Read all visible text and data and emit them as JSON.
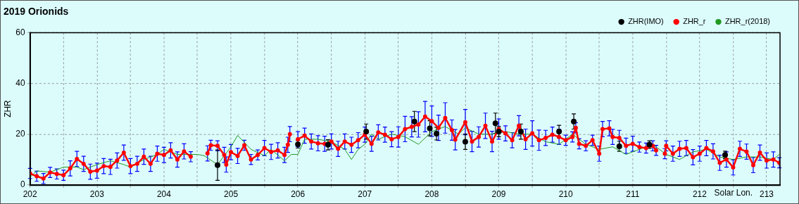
{
  "chart_data": {
    "type": "line",
    "title": "2019 Orionids",
    "xlabel": "Solar Lon.",
    "ylabel": "ZHR",
    "xlim": [
      202,
      213.2
    ],
    "ylim": [
      0,
      60
    ],
    "xticks": [
      202,
      {
        "value": 202.5,
        "label": null
      },
      203,
      {
        "value": 203.5,
        "label": null
      },
      204,
      {
        "value": 204.5,
        "label": null
      },
      205,
      {
        "value": 205.5,
        "label": null
      },
      206,
      {
        "value": 206.5,
        "label": null
      },
      207,
      {
        "value": 207.5,
        "label": null
      },
      208,
      {
        "value": 208.5,
        "label": null
      },
      209,
      {
        "value": 209.5,
        "label": null
      },
      210,
      {
        "value": 210.5,
        "label": null
      },
      211,
      {
        "value": 211.5,
        "label": null
      },
      212,
      {
        "value": 212.5,
        "label": null
      },
      213
    ],
    "yticks": [
      0,
      20,
      40,
      60
    ],
    "grid": true,
    "legend": "top right",
    "series": [
      {
        "name": "ZHR_r",
        "type": "line",
        "color": "#ff0000",
        "marker": "circle",
        "x": [
          202.0,
          202.1,
          202.2,
          202.3,
          202.4,
          202.5,
          202.6,
          202.7,
          202.8,
          202.9,
          203.0,
          203.1,
          203.2,
          203.3,
          203.4,
          203.5,
          203.6,
          203.7,
          203.8,
          203.9,
          204.0,
          204.1,
          204.2,
          204.3,
          204.4,
          204.5,
          204.65,
          204.7,
          204.8,
          204.9,
          204.93,
          205.0,
          205.1,
          205.2,
          205.3,
          205.4,
          205.5,
          205.6,
          205.7,
          205.8,
          205.85,
          205.88,
          205.95,
          206.0,
          206.1,
          206.2,
          206.3,
          206.4,
          206.5,
          206.6,
          206.7,
          206.8,
          206.9,
          207.0,
          207.1,
          207.2,
          207.3,
          207.4,
          207.5,
          207.6,
          207.7,
          207.8,
          207.9,
          208.0,
          208.1,
          208.2,
          208.3,
          208.35,
          208.5,
          208.6,
          208.7,
          208.8,
          208.9,
          209.0,
          209.1,
          209.2,
          209.3,
          209.4,
          209.5,
          209.6,
          209.7,
          209.8,
          209.9,
          210.0,
          210.1,
          210.15,
          210.2,
          210.3,
          210.4,
          210.5,
          210.55,
          210.65,
          210.7,
          210.8,
          210.9,
          211.0,
          211.1,
          211.2,
          211.3,
          211.35,
          211.4,
          211.48,
          211.5,
          211.6,
          211.7,
          211.8,
          211.9,
          212.0,
          212.1,
          212.2,
          212.3,
          212.4,
          212.5,
          212.6,
          212.7,
          212.8,
          212.9,
          213.0,
          213.1,
          213.19
        ],
        "values": [
          4.5,
          3.4,
          2.5,
          4.9,
          4.3,
          3.8,
          6.5,
          10.2,
          8.3,
          5.2,
          5.6,
          7.4,
          7.1,
          9.6,
          12.7,
          7.4,
          8.3,
          11.1,
          8.3,
          12.3,
          11.8,
          13.6,
          10,
          13.2,
          11.1,
          null,
          12.4,
          15.6,
          15.4,
          11.8,
          8,
          12.9,
          11.4,
          15.6,
          10,
          11.8,
          14.5,
          13,
          13.6,
          11.8,
          15.8,
          20,
          null,
          18,
          19.4,
          17.1,
          16.4,
          16.2,
          17.1,
          14.2,
          17.1,
          15.8,
          17.6,
          19.8,
          16.2,
          20.7,
          19.8,
          18,
          18.9,
          22,
          22.9,
          23.8,
          26.9,
          25.1,
          22.5,
          26.4,
          21.6,
          17.8,
          24.7,
          17.1,
          18.9,
          23.3,
          17.1,
          22,
          20.3,
          17.6,
          23.3,
          18,
          20.3,
          17.6,
          18.5,
          19.8,
          18.9,
          17.6,
          18.9,
          22.5,
          16.2,
          15.4,
          17.6,
          12.3,
          22,
          22.3,
          18.9,
          18.5,
          15.4,
          16.2,
          14.9,
          14.5,
          15.4,
          13.6,
          null,
          12.3,
          15.4,
          12.3,
          14.2,
          14.5,
          10.9,
          12.3,
          14.5,
          13.2,
          8.7,
          10,
          6.9,
          14.2,
          13.1,
          7.8,
          12.7,
          9.6,
          10,
          8.7
        ],
        "errors": [
          2,
          2,
          2,
          2,
          2,
          2,
          3,
          3,
          3,
          3,
          3,
          3,
          3,
          3,
          3,
          3,
          3,
          3,
          3,
          3,
          3,
          3,
          3,
          3,
          2,
          null,
          3,
          2,
          2,
          3,
          3,
          3,
          3,
          2,
          2,
          2,
          3,
          3,
          3,
          3,
          3,
          3,
          null,
          3,
          3,
          3,
          3,
          3,
          3,
          3,
          3,
          3,
          3,
          3,
          3,
          3,
          3,
          3,
          4,
          5,
          4,
          5,
          6,
          6,
          5,
          6,
          4,
          4,
          5,
          4,
          4,
          5,
          4,
          4,
          3,
          3,
          4,
          4,
          5,
          4,
          3,
          3,
          3,
          2,
          2,
          2,
          2,
          2,
          2,
          3,
          3,
          3,
          3,
          3,
          3,
          3,
          2,
          2,
          2,
          2,
          null,
          2,
          2,
          3,
          3,
          3,
          3,
          3,
          3,
          3,
          3,
          3,
          3,
          3,
          3,
          3,
          3,
          3,
          3,
          2
        ]
      },
      {
        "name": "ZHR_r(2018)",
        "type": "line",
        "color": "#229922",
        "marker": "none",
        "x": [
          202.0,
          202.1,
          202.3,
          202.5,
          202.7,
          202.8,
          203.0,
          203.2,
          203.4,
          203.5,
          203.7,
          203.9,
          204.0,
          204.2,
          204.5,
          204.6,
          204.8,
          205.0,
          205.1,
          205.3,
          205.5,
          205.6,
          205.8,
          205.9,
          206.0,
          206.1,
          206.3,
          206.5,
          206.7,
          206.8,
          206.9,
          207.0,
          207.1,
          207.2,
          207.4,
          207.6,
          207.8,
          208.0,
          208.2,
          208.4,
          208.5,
          208.7,
          208.9,
          209.1,
          209.3,
          209.5,
          209.7,
          209.9,
          210.1,
          210.3,
          210.5,
          210.7,
          210.9,
          211.1,
          211.3,
          211.5,
          211.7,
          211.9,
          212.1,
          212.3,
          212.5,
          212.7,
          212.9,
          213.1,
          213.19
        ],
        "values": [
          3,
          5.5,
          5,
          7,
          7,
          6,
          8,
          9.5,
          8,
          7,
          10,
          12,
          14,
          12,
          12,
          11.5,
          8,
          15,
          19.5,
          14,
          11.5,
          14,
          9.5,
          12,
          12,
          18,
          18,
          17,
          14,
          10,
          14,
          16,
          20,
          18,
          20,
          19,
          16,
          21,
          23,
          20,
          22.5,
          20,
          20,
          21,
          20,
          20,
          17,
          16,
          20,
          16,
          14,
          15,
          12,
          14,
          16,
          12,
          10,
          13,
          14,
          11,
          10,
          11,
          11,
          10,
          12
        ]
      },
      {
        "name": "ZHR(IMO)",
        "type": "scatter",
        "color": "#000000",
        "marker": "circle",
        "x": [
          204.8,
          206.0,
          206.45,
          207.02,
          207.74,
          207.97,
          208.07,
          208.5,
          208.95,
          209.0,
          209.33,
          209.9,
          210.12,
          210.8,
          211.25,
          212.38
        ],
        "values": [
          7.8,
          16,
          15.8,
          21,
          25,
          22.3,
          20.2,
          17,
          24.3,
          21,
          21,
          21,
          25,
          15.2,
          15.9,
          11.8
        ],
        "errors": [
          6,
          1.5,
          2,
          3,
          4,
          3,
          2.5,
          3,
          4,
          2,
          3,
          2.5,
          3,
          2,
          1.5,
          1.5
        ]
      }
    ]
  }
}
